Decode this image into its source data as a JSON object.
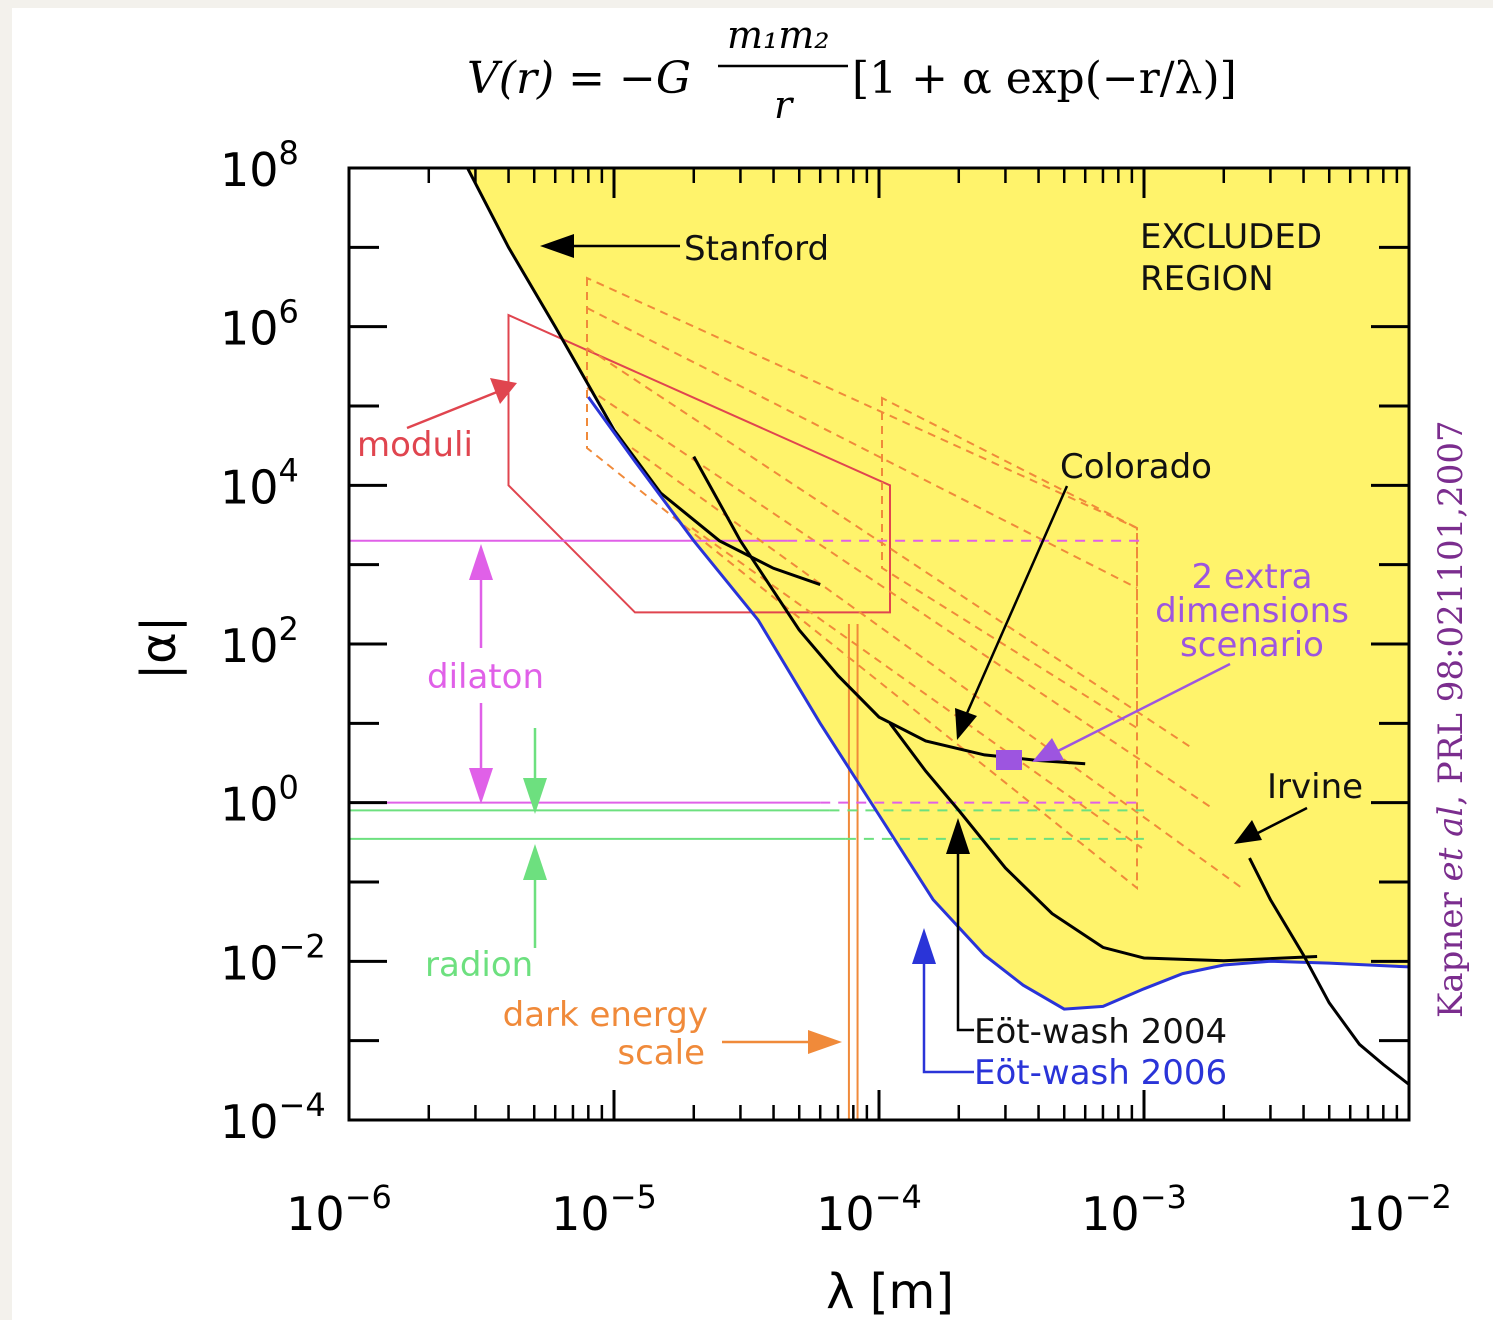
{
  "formula": {
    "lhs": "V(r) = −G",
    "numerator": "m₁m₂",
    "denominator": "r",
    "rhs": "[1 + α exp(−r/λ)]"
  },
  "citation": {
    "authors": "Kapner ",
    "etal": "et al",
    "ref": ", PRL 98:021101,2007",
    "color": "#7b2d8e"
  },
  "chart_data": {
    "type": "line",
    "xscale": "log",
    "yscale": "log",
    "xlim": [
      1e-06,
      0.01
    ],
    "ylim": [
      0.0001,
      100000000.0
    ],
    "xlabel": "λ [m]",
    "ylabel": "|α|",
    "x_ticks": [
      {
        "value": 1e-06,
        "base": "10",
        "exp": "−6"
      },
      {
        "value": 1e-05,
        "base": "10",
        "exp": "−5"
      },
      {
        "value": 0.0001,
        "base": "10",
        "exp": "−4"
      },
      {
        "value": 0.001,
        "base": "10",
        "exp": "−3"
      },
      {
        "value": 0.01,
        "base": "10",
        "exp": "−2"
      }
    ],
    "y_ticks": [
      {
        "value": 100000000.0,
        "base": "10",
        "exp": "8"
      },
      {
        "value": 1000000.0,
        "base": "10",
        "exp": "6"
      },
      {
        "value": 10000.0,
        "base": "10",
        "exp": "4"
      },
      {
        "value": 100.0,
        "base": "10",
        "exp": "2"
      },
      {
        "value": 1,
        "base": "10",
        "exp": "0"
      },
      {
        "value": 0.01,
        "base": "10",
        "exp": "−2"
      },
      {
        "value": 0.0001,
        "base": "10",
        "exp": "−4"
      }
    ],
    "excluded_region_color": "#fff36b",
    "excluded_boundary": [
      [
        2.8e-06,
        100000000.0
      ],
      [
        4e-06,
        10000000.0
      ],
      [
        6e-06,
        1000000.0
      ],
      [
        8e-06,
        200000.0
      ],
      [
        1.2e-05,
        20000.0
      ],
      [
        2e-05,
        2000.0
      ],
      [
        3.5e-05,
        200
      ],
      [
        6e-05,
        10
      ],
      [
        0.0001,
        0.7
      ],
      [
        0.00016,
        0.06
      ],
      [
        0.00025,
        0.012
      ],
      [
        0.00035,
        0.005
      ],
      [
        0.0005,
        0.0025
      ],
      [
        0.0007,
        0.0027
      ],
      [
        0.001,
        0.0045
      ],
      [
        0.0014,
        0.007
      ],
      [
        0.002,
        0.009
      ],
      [
        0.003,
        0.01
      ],
      [
        0.005,
        0.0095
      ],
      [
        0.01,
        0.0085
      ]
    ],
    "annotation_excluded": [
      "EXCLUDED",
      "REGION"
    ],
    "series": [
      {
        "name": "Stanford",
        "label_lines": [
          "Stanford"
        ],
        "color": "#000000",
        "points": [
          [
            2.8e-06,
            100000000.0
          ],
          [
            4e-06,
            10000000.0
          ],
          [
            6e-06,
            1000000.0
          ],
          [
            1e-05,
            50000.0
          ],
          [
            1.5e-05,
            8000.0
          ],
          [
            2.5e-05,
            2000.0
          ],
          [
            4e-05,
            900
          ],
          [
            6e-05,
            560
          ]
        ]
      },
      {
        "name": "Colorado",
        "label_lines": [
          "Colorado"
        ],
        "color": "#000000",
        "points": [
          [
            2e-05,
            23000.0
          ],
          [
            3e-05,
            2000.0
          ],
          [
            5e-05,
            150
          ],
          [
            7e-05,
            40
          ],
          [
            0.0001,
            12
          ],
          [
            0.00015,
            6
          ],
          [
            0.00025,
            4
          ],
          [
            0.0004,
            3.4
          ],
          [
            0.0006,
            3.1
          ]
        ]
      },
      {
        "name": "Eöt-wash 2004",
        "label_lines": [
          "Eöt-wash 2004"
        ],
        "color": "#000000",
        "points": [
          [
            0.00011,
            10
          ],
          [
            0.00015,
            2.5
          ],
          [
            0.0002,
            0.8
          ],
          [
            0.0003,
            0.15
          ],
          [
            0.00045,
            0.04
          ],
          [
            0.0007,
            0.015
          ],
          [
            0.001,
            0.011
          ],
          [
            0.002,
            0.0102
          ],
          [
            0.0045,
            0.0115
          ]
        ]
      },
      {
        "name": "Eöt-wash 2006",
        "label_lines": [
          "Eöt-wash 2006"
        ],
        "color": "#2a34d8",
        "points": [
          [
            8e-06,
            130000.0
          ],
          [
            1.2e-05,
            20000.0
          ],
          [
            2e-05,
            2000.0
          ],
          [
            3.5e-05,
            200
          ],
          [
            6e-05,
            10
          ],
          [
            0.0001,
            0.7
          ],
          [
            0.00016,
            0.06
          ],
          [
            0.00025,
            0.012
          ],
          [
            0.00035,
            0.005
          ],
          [
            0.0005,
            0.0025
          ],
          [
            0.0007,
            0.0027
          ],
          [
            0.001,
            0.0045
          ],
          [
            0.0014,
            0.007
          ],
          [
            0.002,
            0.009
          ],
          [
            0.003,
            0.01
          ],
          [
            0.005,
            0.0095
          ],
          [
            0.01,
            0.0085
          ]
        ]
      },
      {
        "name": "Irvine",
        "label_lines": [
          "Irvine"
        ],
        "color": "#000000",
        "points": [
          [
            0.0025,
            0.2
          ],
          [
            0.003,
            0.06
          ],
          [
            0.004,
            0.012
          ],
          [
            0.005,
            0.003
          ],
          [
            0.0065,
            0.0009
          ],
          [
            0.008,
            0.0005
          ],
          [
            0.01,
            0.00028
          ]
        ]
      }
    ],
    "theory": {
      "moduli": {
        "label": "moduli",
        "color": "#e0454f",
        "polygon": [
          [
            4e-06,
            1400000.0
          ],
          [
            4e-06,
            10000.0
          ],
          [
            1.2e-05,
            250
          ],
          [
            0.00011,
            250
          ],
          [
            0.00011,
            10000.0
          ],
          [
            4e-06,
            1400000.0
          ]
        ]
      },
      "dilaton": {
        "label": "dilaton",
        "color": "#e060e8",
        "upper": 2000.0,
        "lower": 1
      },
      "radion": {
        "label": "radion",
        "color": "#6de07f",
        "upper": 0.8,
        "lower": 0.35
      },
      "dark_energy": {
        "label_lines": [
          "dark energy",
          "scale"
        ],
        "color": "#f08a3a",
        "x": [
          7.7e-05,
          8.3e-05
        ]
      },
      "extra_dimensions": {
        "label_lines": [
          "2 extra",
          "dimensions",
          "scenario"
        ],
        "color": "#9d55e0"
      }
    }
  }
}
